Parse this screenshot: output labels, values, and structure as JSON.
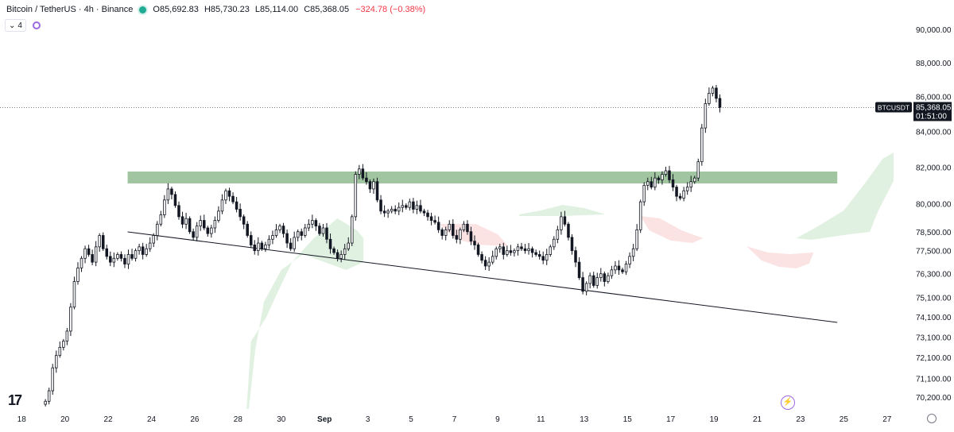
{
  "legend": {
    "symbol": "Bitcoin / TetherUS · 4h · Binance",
    "open": "O85,692.83",
    "high": "H85,730.23",
    "low": "L85,114.00",
    "close": "C85,368.05",
    "change": "−324.78 (−0.38%)",
    "indicators_count": "4"
  },
  "price_tag": {
    "ticker": "BTCUSDT",
    "price": "85,368.05",
    "countdown": "01:51:00"
  },
  "colors": {
    "up": "#131722",
    "down": "#131722",
    "zone": "#8fbb8f",
    "cloud_green": "#d7ecd7",
    "cloud_red": "#f9d9d9",
    "trendline": "#131722"
  },
  "chart_data": {
    "type": "candlestick",
    "timeframe": "4h",
    "y_ticks": [
      90000,
      88000,
      86000,
      84000,
      82000,
      80000,
      78500,
      77500,
      76300,
      75100,
      74100,
      73100,
      72100,
      71100,
      70200
    ],
    "y_tick_labels": [
      "90,000.00",
      "88,000.00",
      "86,000.00",
      "84,000.00",
      "82,000.00",
      "80,000.00",
      "78,500.00",
      "77,500.00",
      "76,300.00",
      "75,100.00",
      "74,100.00",
      "73,100.00",
      "72,100.00",
      "71,100.00",
      "70,200.00"
    ],
    "y_scale": "log",
    "x_ticks": [
      "18",
      "20",
      "22",
      "24",
      "26",
      "28",
      "30",
      "Sep",
      "3",
      "5",
      "7",
      "9",
      "11",
      "13",
      "15",
      "17",
      "19",
      "21",
      "23",
      "25",
      "27"
    ],
    "x_tick_days": [
      -14,
      -12,
      -10,
      -8,
      -6,
      -4,
      -2,
      0,
      2,
      4,
      6,
      8,
      10,
      12,
      14,
      16,
      18,
      20,
      22,
      24,
      26
    ],
    "x_range_days": [
      -15,
      27
    ],
    "candle_interval_days": 0.1667,
    "first_candle_day": -12.9,
    "last_price": 85368.05,
    "resistance_zone": {
      "from_day": -9.1,
      "to_day": 23.7,
      "low": 81300,
      "high": 81700
    },
    "trendline": {
      "from": [
        -9.1,
        78500
      ],
      "to": [
        23.7,
        74000
      ]
    },
    "closes": [
      70000,
      70500,
      71600,
      72200,
      72600,
      72900,
      73400,
      74600,
      75900,
      76600,
      77100,
      77600,
      77300,
      76900,
      77700,
      78300,
      77600,
      77200,
      76900,
      77100,
      77300,
      77100,
      76800,
      77300,
      77100,
      77500,
      77700,
      77300,
      77600,
      77900,
      78300,
      78900,
      79400,
      80200,
      80800,
      80500,
      79900,
      79300,
      78900,
      79200,
      78500,
      78200,
      78800,
      79100,
      78700,
      78400,
      78700,
      79100,
      79600,
      80200,
      80700,
      80400,
      80100,
      79700,
      79300,
      78900,
      78300,
      77800,
      77500,
      77900,
      77600,
      77800,
      78100,
      78300,
      78600,
      78800,
      78400,
      77900,
      77600,
      78200,
      78500,
      78300,
      78700,
      78900,
      79100,
      78800,
      78400,
      78700,
      78100,
      77600,
      77400,
      77100,
      77300,
      77600,
      77900,
      79300,
      81600,
      81900,
      81400,
      81200,
      80800,
      81200,
      80200,
      79600,
      79500,
      79600,
      79700,
      79600,
      79800,
      79900,
      79800,
      80100,
      79700,
      79900,
      79600,
      79500,
      79300,
      79100,
      79000,
      78600,
      78300,
      78600,
      78900,
      78300,
      78100,
      78600,
      78900,
      78500,
      78000,
      77800,
      77300,
      77000,
      76700,
      76900,
      77200,
      77600,
      77700,
      77300,
      77500,
      77400,
      77500,
      77700,
      77600,
      77500,
      77600,
      77400,
      77300,
      77200,
      77000,
      77300,
      77700,
      78100,
      78600,
      79300,
      78900,
      78200,
      77500,
      76900,
      76100,
      75400,
      75800,
      76200,
      75700,
      76100,
      76300,
      75900,
      76200,
      76500,
      76700,
      76500,
      76400,
      76800,
      77200,
      77600,
      78600,
      80100,
      81000,
      81200,
      80900,
      81400,
      81300,
      81600,
      81800,
      81300,
      80900,
      80400,
      80300,
      80700,
      80900,
      81200,
      81400,
      82300,
      84200,
      85600,
      86200,
      86500,
      85900,
      85368
    ]
  }
}
